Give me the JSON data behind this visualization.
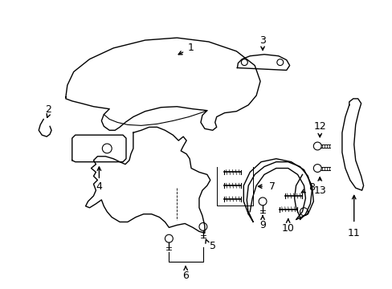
{
  "background_color": "#ffffff",
  "line_color": "#000000",
  "line_width": 1.0,
  "fig_width": 4.89,
  "fig_height": 3.6,
  "dpi": 100
}
